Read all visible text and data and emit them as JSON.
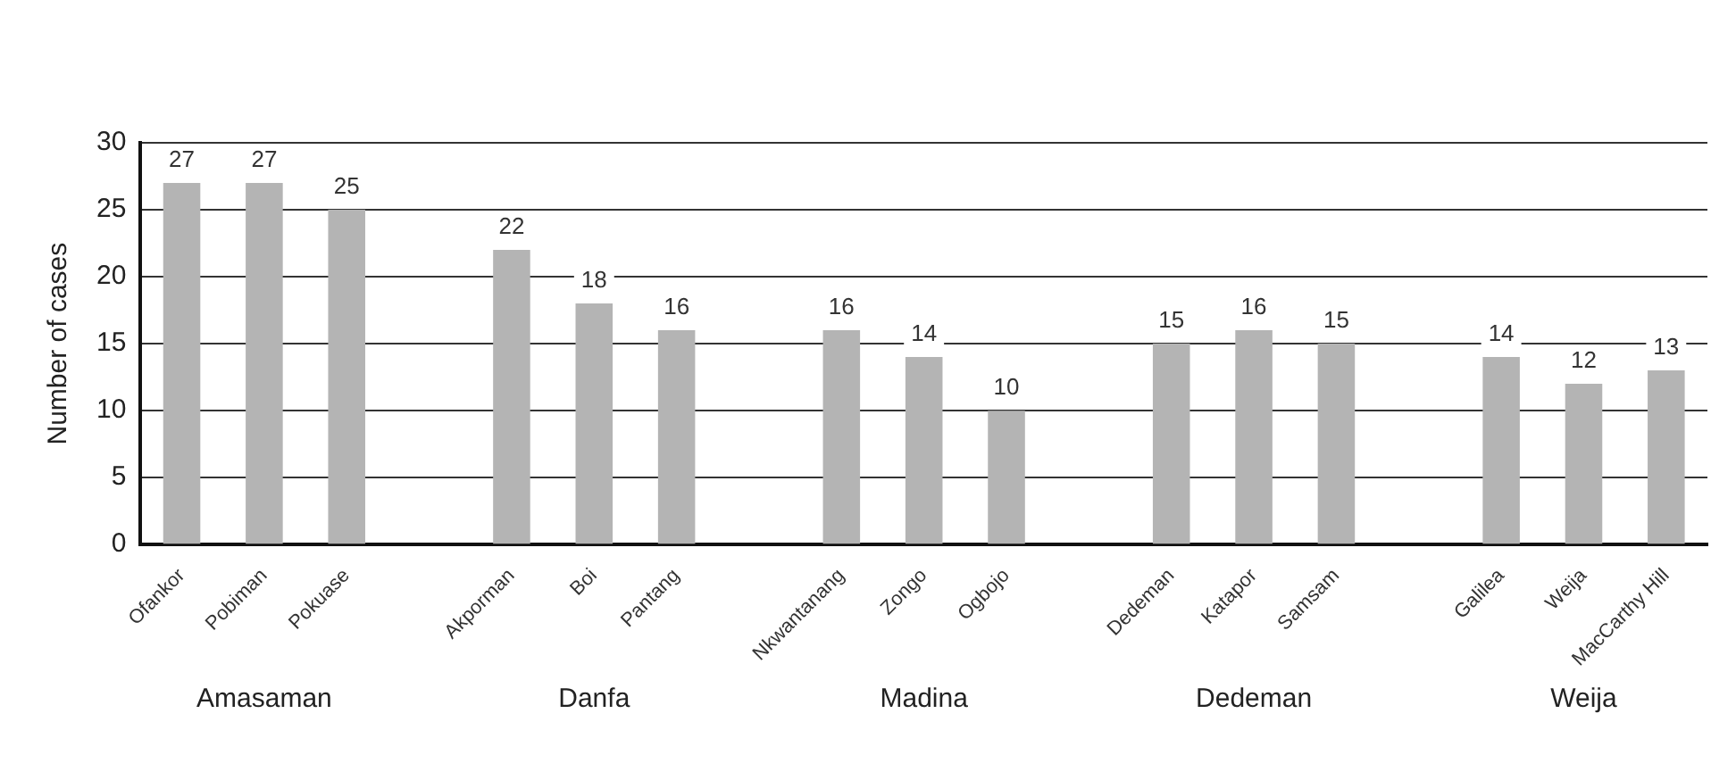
{
  "chart_data": {
    "type": "bar",
    "ylabel": "Number of cases",
    "categories": [
      "Ofankor",
      "Pobiman",
      "Pokuase",
      null,
      "Akporman",
      "Boi",
      "Pantang",
      null,
      "Nkwantanang",
      "Zongo",
      "Ogbojo",
      null,
      "Dedeman",
      "Katapor",
      "Samsam",
      null,
      "Galilea",
      "Weija",
      "MacCarthy Hill"
    ],
    "values": [
      27,
      27,
      25,
      null,
      22,
      18,
      16,
      null,
      16,
      14,
      10,
      null,
      15,
      16,
      15,
      null,
      14,
      12,
      13
    ],
    "color": "#b4b4b4",
    "ylim": [
      0,
      30
    ],
    "yticks": [
      0,
      5,
      10,
      15,
      20,
      25,
      30
    ],
    "grid": "y",
    "legend": false,
    "data_labels": true,
    "annotations": [
      "Amasaman",
      "Danfa",
      "Madina",
      "Dedeman",
      "Weija"
    ]
  }
}
